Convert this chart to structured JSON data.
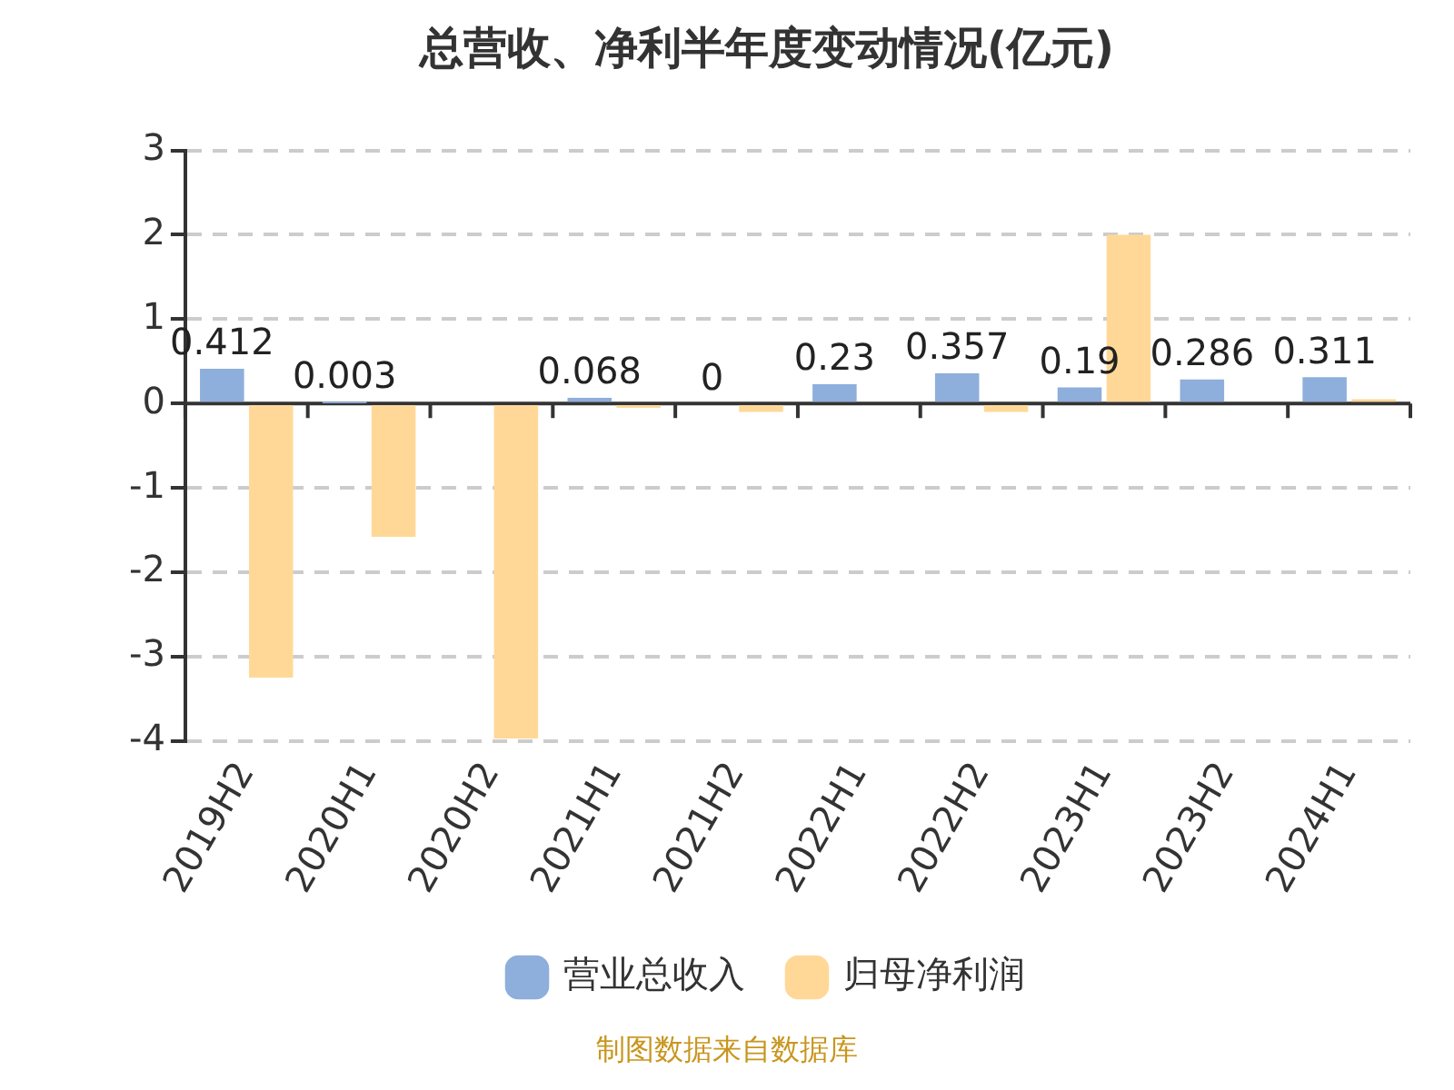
{
  "chart_data": {
    "type": "bar",
    "title": "总营收、净利半年度变动情况(亿元)",
    "categories": [
      "2019H2",
      "2020H1",
      "2020H2",
      "2021H1",
      "2021H2",
      "2022H1",
      "2022H2",
      "2023H1",
      "2023H2",
      "2024H1"
    ],
    "series": [
      {
        "name": "营业总收入",
        "color": "#8eaedb",
        "values": [
          0.412,
          0.003,
          null,
          0.068,
          0,
          0.23,
          0.357,
          0.19,
          0.286,
          0.311
        ],
        "value_labels": [
          "0.412",
          "0.003",
          null,
          "0.068",
          "0",
          "0.23",
          "0.357",
          "0.19",
          "0.286",
          "0.311"
        ]
      },
      {
        "name": "归母净利润",
        "color": "#ffd898",
        "values": [
          -3.25,
          -1.58,
          -3.97,
          -0.05,
          -0.1,
          null,
          -0.1,
          2.0,
          null,
          0.05
        ]
      }
    ],
    "ylim": [
      -4,
      3
    ],
    "yticks": [
      -4,
      -3,
      -2,
      -1,
      0,
      1,
      2,
      3
    ],
    "grid": "y",
    "legend": "bottom",
    "annotations": [
      "制图数据来自数据库"
    ]
  }
}
